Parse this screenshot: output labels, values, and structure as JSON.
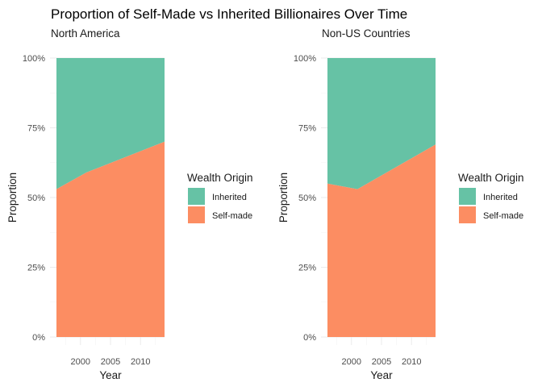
{
  "title": "Proportion of Self-Made vs Inherited Billionaires Over Time",
  "colors": {
    "inherited": "#66c2a5",
    "self_made": "#fc8d62"
  },
  "chart_data": [
    {
      "type": "area",
      "subtitle": "North America",
      "xlabel": "Year",
      "ylabel": "Proportion",
      "x": [
        1996,
        2001,
        2014
      ],
      "x_ticks": [
        "2000",
        "2005",
        "2010"
      ],
      "x_tick_values": [
        2000,
        2005,
        2010
      ],
      "xlim": [
        1996,
        2014
      ],
      "y_ticks": [
        "0%",
        "25%",
        "50%",
        "75%",
        "100%"
      ],
      "y_tick_values": [
        0,
        0.25,
        0.5,
        0.75,
        1.0
      ],
      "ylim": [
        0,
        1
      ],
      "stacked": true,
      "series": [
        {
          "name": "Self-made",
          "values": [
            0.53,
            0.59,
            0.7
          ]
        },
        {
          "name": "Inherited",
          "values": [
            0.47,
            0.41,
            0.3
          ]
        }
      ],
      "legend": {
        "title": "Wealth Origin",
        "position": "right",
        "entries": [
          "Inherited",
          "Self-made"
        ]
      },
      "grid": true
    },
    {
      "type": "area",
      "subtitle": "Non-US Countries",
      "xlabel": "Year",
      "ylabel": "Proportion",
      "x": [
        1996,
        2001,
        2014
      ],
      "x_ticks": [
        "2000",
        "2005",
        "2010"
      ],
      "x_tick_values": [
        2000,
        2005,
        2010
      ],
      "xlim": [
        1996,
        2014
      ],
      "y_ticks": [
        "0%",
        "25%",
        "50%",
        "75%",
        "100%"
      ],
      "y_tick_values": [
        0,
        0.25,
        0.5,
        0.75,
        1.0
      ],
      "ylim": [
        0,
        1
      ],
      "stacked": true,
      "series": [
        {
          "name": "Self-made",
          "values": [
            0.55,
            0.53,
            0.69
          ]
        },
        {
          "name": "Inherited",
          "values": [
            0.45,
            0.47,
            0.31
          ]
        }
      ],
      "legend": {
        "title": "Wealth Origin",
        "position": "right",
        "entries": [
          "Inherited",
          "Self-made"
        ]
      },
      "grid": true
    }
  ]
}
